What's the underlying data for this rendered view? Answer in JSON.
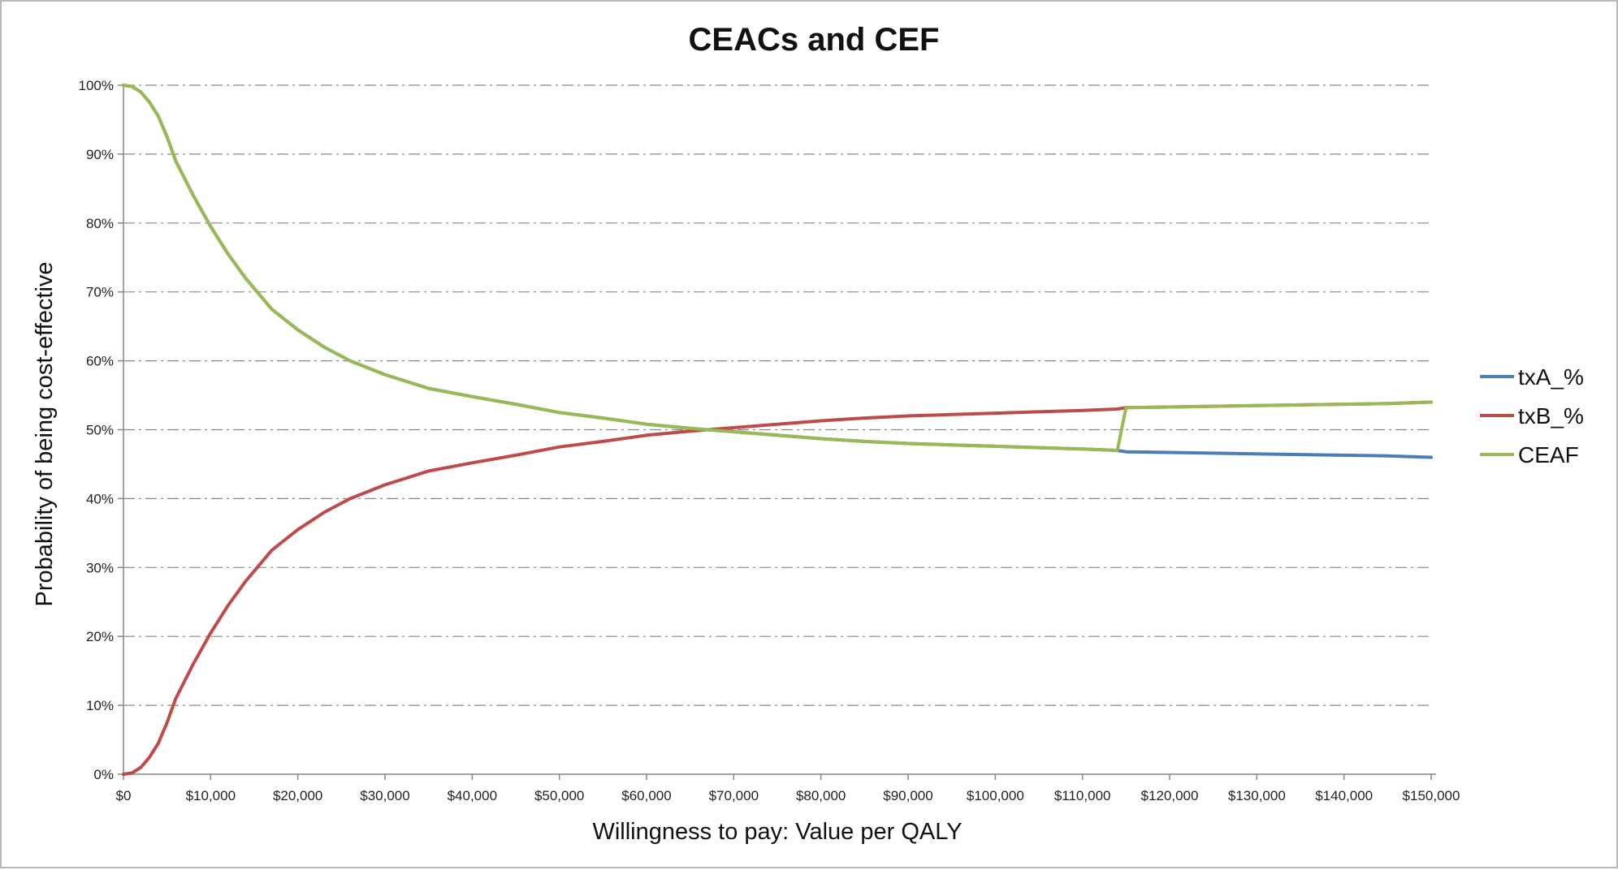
{
  "chart_data": {
    "type": "line",
    "title": "CEACs and CEF",
    "xlabel": "Willingness to pay: Value per QALY",
    "ylabel": "Probability of being cost-effective",
    "xlim": [
      0,
      150000
    ],
    "ylim": [
      0,
      1
    ],
    "x_ticks": [
      "$0",
      "$10,000",
      "$20,000",
      "$30,000",
      "$40,000",
      "$50,000",
      "$60,000",
      "$70,000",
      "$80,000",
      "$90,000",
      "$100,000",
      "$110,000",
      "$120,000",
      "$130,000",
      "$140,000",
      "$150,000"
    ],
    "y_ticks": [
      "0%",
      "10%",
      "20%",
      "30%",
      "40%",
      "50%",
      "60%",
      "70%",
      "80%",
      "90%",
      "100%"
    ],
    "grid": "horizontal dash-dot",
    "legend_position": "right",
    "x": [
      0,
      1000,
      2000,
      3000,
      4000,
      5000,
      6000,
      8000,
      10000,
      12000,
      14000,
      17000,
      20000,
      23000,
      26000,
      30000,
      35000,
      40000,
      45000,
      50000,
      55000,
      60000,
      65000,
      67000,
      70000,
      75000,
      80000,
      85000,
      90000,
      95000,
      100000,
      105000,
      110000,
      114000,
      115000,
      120000,
      125000,
      130000,
      135000,
      140000,
      145000,
      150000
    ],
    "series": [
      {
        "name": "txA_%",
        "color": "#4a7ebb",
        "values": [
          1.0,
          0.998,
          0.99,
          0.975,
          0.955,
          0.925,
          0.89,
          0.84,
          0.795,
          0.755,
          0.72,
          0.675,
          0.645,
          0.62,
          0.6,
          0.58,
          0.56,
          0.548,
          0.537,
          0.525,
          0.517,
          0.508,
          0.502,
          0.5,
          0.497,
          0.492,
          0.487,
          0.483,
          0.48,
          0.478,
          0.476,
          0.474,
          0.472,
          0.47,
          0.468,
          0.467,
          0.466,
          0.465,
          0.464,
          0.463,
          0.462,
          0.46
        ]
      },
      {
        "name": "txB_%",
        "color": "#be4b48",
        "values": [
          0.0,
          0.002,
          0.01,
          0.025,
          0.045,
          0.075,
          0.11,
          0.16,
          0.205,
          0.245,
          0.28,
          0.325,
          0.355,
          0.38,
          0.4,
          0.42,
          0.44,
          0.452,
          0.463,
          0.475,
          0.483,
          0.492,
          0.498,
          0.5,
          0.503,
          0.508,
          0.513,
          0.517,
          0.52,
          0.522,
          0.524,
          0.526,
          0.528,
          0.53,
          0.532,
          0.533,
          0.534,
          0.535,
          0.536,
          0.537,
          0.538,
          0.54
        ]
      },
      {
        "name": "CEAF",
        "color": "#98b954",
        "values": [
          1.0,
          0.998,
          0.99,
          0.975,
          0.955,
          0.925,
          0.89,
          0.84,
          0.795,
          0.755,
          0.72,
          0.675,
          0.645,
          0.62,
          0.6,
          0.58,
          0.56,
          0.548,
          0.537,
          0.525,
          0.517,
          0.508,
          0.502,
          0.5,
          0.497,
          0.492,
          0.487,
          0.483,
          0.48,
          0.478,
          0.476,
          0.474,
          0.472,
          0.47,
          0.532,
          0.533,
          0.534,
          0.535,
          0.536,
          0.537,
          0.538,
          0.54
        ]
      }
    ]
  }
}
